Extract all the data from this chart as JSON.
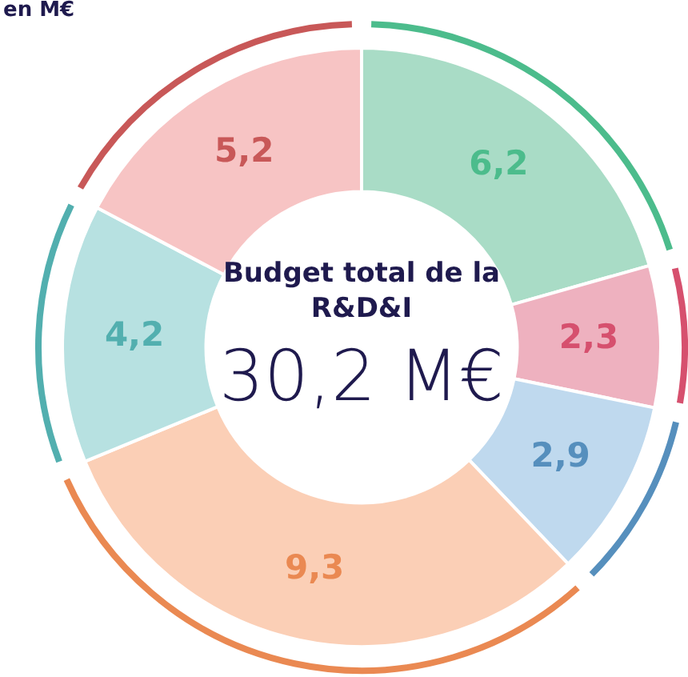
{
  "chart_data": {
    "type": "donut",
    "title": "en M€",
    "categories": [
      null,
      null,
      null,
      null,
      null,
      null
    ],
    "values": [
      6.2,
      2.3,
      2.9,
      9.3,
      4.2,
      5.2
    ],
    "value_labels": [
      "6,2",
      "2,3",
      "2,9",
      "9,3",
      "4,2",
      "5,2"
    ],
    "colors": [
      "#a9dcc6",
      "#eeb1bf",
      "#bfd9ee",
      "#fbcfb6",
      "#b7e1e1",
      "#f7c4c4"
    ],
    "annotations": [
      "Budget total de la R&D&I",
      "30,2 M€"
    ],
    "legend": false
  }
}
